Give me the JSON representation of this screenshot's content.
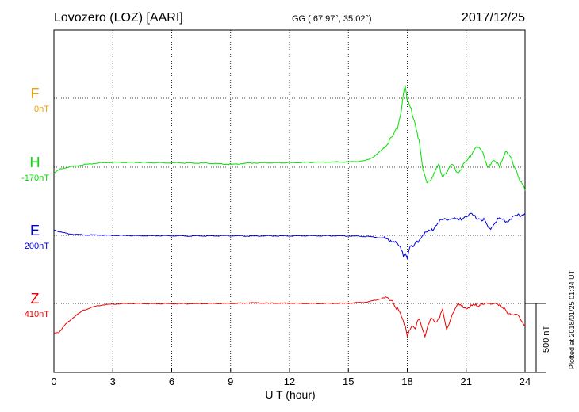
{
  "header": {
    "station": "Lovozero (LOZ)  [AARI]",
    "coords": "GG ( 67.97°,  35.02°)",
    "date": "2017/12/25"
  },
  "plot_note": "Plotted at 2018/01/25 01:34 UT",
  "colors": {
    "F": "#f0a000",
    "H": "#00e000",
    "E": "#0000dd",
    "Z": "#ee0000",
    "grid": "#000000"
  },
  "chart_data": {
    "type": "line",
    "title": "Lovozero (LOZ)  [AARI]",
    "xlabel": "U T (hour)",
    "xlim": [
      0,
      24
    ],
    "x_ticks": [
      0,
      3,
      6,
      9,
      12,
      15,
      18,
      21,
      24
    ],
    "x_tick_labels": [
      "0",
      "3",
      "6",
      "9",
      "12",
      "15",
      "18",
      "21",
      "24"
    ],
    "grid": true,
    "scale_bar": {
      "label": "500 nT",
      "value_nT": 500
    },
    "series": [
      {
        "name": "F",
        "offset_label": "0nT",
        "color": "#f0a000",
        "baseline_nT": 0,
        "x": [],
        "y": []
      },
      {
        "name": "H",
        "offset_label": "-170nT",
        "color": "#00e000",
        "baseline_nT": -170,
        "x": [
          0,
          0.3,
          0.7,
          1.2,
          1.6,
          2.2,
          3,
          4,
          5,
          6,
          7,
          8,
          9,
          10,
          11,
          12,
          13,
          14,
          15,
          15.8,
          16.3,
          16.7,
          17.0,
          17.3,
          17.5,
          17.7,
          17.8,
          17.9,
          18.0,
          18.2,
          18.4,
          18.6,
          18.8,
          19.0,
          19.2,
          19.4,
          19.6,
          19.8,
          20.0,
          20.3,
          20.6,
          20.9,
          21.2,
          21.5,
          21.8,
          22.1,
          22.4,
          22.7,
          23.0,
          23.3,
          23.6,
          23.8,
          24.0
        ],
        "y": [
          -215,
          -185,
          -170,
          -160,
          -150,
          -140,
          -135,
          -135,
          -138,
          -138,
          -140,
          -142,
          -150,
          -140,
          -138,
          -138,
          -135,
          -132,
          -132,
          -125,
          -95,
          -45,
          5,
          60,
          120,
          250,
          370,
          410,
          310,
          250,
          150,
          20,
          -195,
          -270,
          -255,
          -210,
          -150,
          -230,
          -200,
          -155,
          -210,
          -150,
          -95,
          -15,
          -60,
          -160,
          -130,
          -160,
          -55,
          -110,
          -205,
          -285,
          -340
        ]
      },
      {
        "name": "E",
        "offset_label": "200nT",
        "color": "#0000dd",
        "baseline_nT": 200,
        "x": [
          0,
          0.3,
          0.7,
          1.2,
          1.8,
          2.5,
          3,
          4,
          5,
          6,
          7,
          8,
          9,
          10,
          11,
          12,
          13,
          14,
          15,
          16,
          16.8,
          17.3,
          17.6,
          17.8,
          17.9,
          18.0,
          18.1,
          18.3,
          18.5,
          18.8,
          19.2,
          19.6,
          20.0,
          20.3,
          20.6,
          20.9,
          21.2,
          21.5,
          21.9,
          22.2,
          22.6,
          23.0,
          23.4,
          23.8,
          24.0
        ],
        "y": [
          240,
          225,
          212,
          205,
          203,
          202,
          200,
          198,
          197,
          197,
          196,
          196,
          197,
          195,
          196,
          196,
          197,
          197,
          196,
          192,
          180,
          160,
          120,
          55,
          80,
          40,
          110,
          115,
          150,
          210,
          230,
          300,
          320,
          330,
          305,
          340,
          350,
          330,
          310,
          240,
          320,
          300,
          330,
          350,
          360
        ]
      },
      {
        "name": "Z",
        "offset_label": "410nT",
        "color": "#ee0000",
        "baseline_nT": 410,
        "x": [
          0,
          0.25,
          0.6,
          1.0,
          1.5,
          2.0,
          2.5,
          3,
          4,
          5,
          6,
          7,
          8,
          9,
          10,
          11,
          12,
          13,
          14,
          15,
          16,
          16.8,
          17.2,
          17.5,
          17.7,
          17.9,
          18.0,
          18.2,
          18.4,
          18.6,
          18.9,
          19.2,
          19.5,
          19.8,
          20.0,
          20.3,
          20.6,
          21.0,
          21.4,
          21.8,
          22.2,
          22.5,
          22.8,
          23.2,
          23.6,
          24.0
        ],
        "y": [
          195,
          200,
          260,
          310,
          360,
          385,
          400,
          405,
          410,
          408,
          408,
          408,
          410,
          410,
          415,
          412,
          412,
          410,
          410,
          412,
          420,
          450,
          440,
          370,
          310,
          250,
          180,
          250,
          220,
          310,
          180,
          300,
          280,
          360,
          210,
          340,
          400,
          380,
          390,
          410,
          400,
          420,
          380,
          340,
          320,
          255
        ]
      }
    ]
  }
}
